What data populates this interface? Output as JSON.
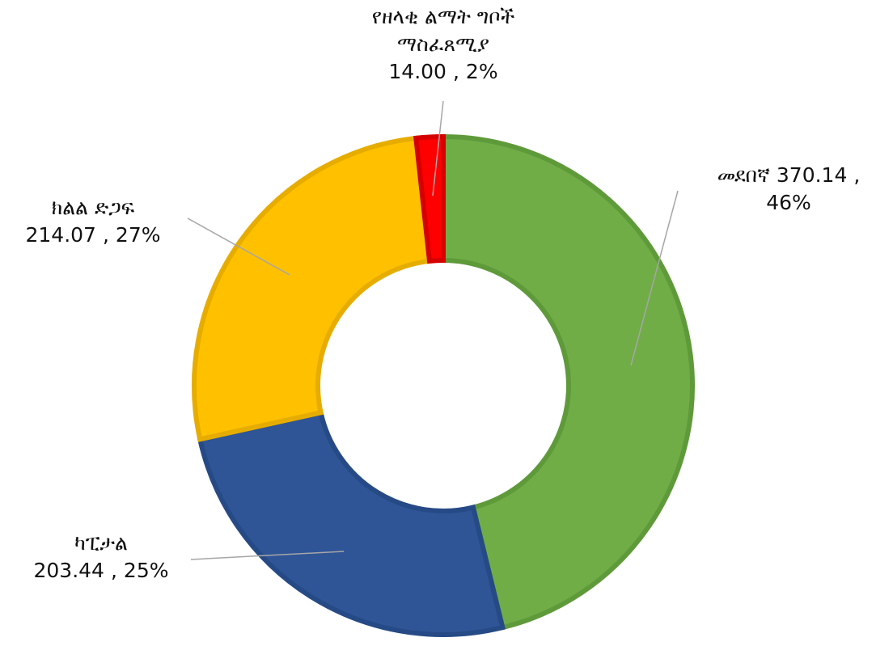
{
  "chart_data": {
    "type": "donut",
    "categories": [
      "መደበኛ",
      "ካፒታል",
      "ክልል ድጋፍ",
      "የዘላቂ ልማት ግቦች ማስፈጸሚያ"
    ],
    "values": [
      370.14,
      203.44,
      214.07,
      14
    ],
    "value_labels": [
      "370.14",
      "203.44",
      "214.07",
      "14.00"
    ],
    "percents": [
      46,
      25,
      27,
      2
    ],
    "percent_labels": [
      "46%",
      "25%",
      "27%",
      "2%"
    ],
    "label_separator": ",",
    "colors": [
      "#70ad47",
      "#2f5597",
      "#ffc000",
      "#ff0000"
    ],
    "borders": [
      "#5f9a3a",
      "#264a85",
      "#e6ad00",
      "#d60000"
    ]
  }
}
